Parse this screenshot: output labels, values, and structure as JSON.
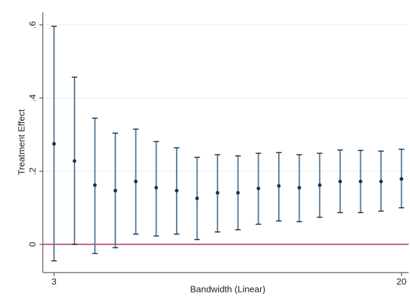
{
  "chart_data": {
    "type": "errorbar",
    "x_label": "Bandwidth (Linear)",
    "y_label": "Treatment Effect",
    "x": [
      3,
      4,
      5,
      6,
      7,
      8,
      9,
      10,
      11,
      12,
      13,
      14,
      15,
      16,
      17,
      18,
      19,
      20
    ],
    "values": [
      0.275,
      0.228,
      0.162,
      0.147,
      0.172,
      0.155,
      0.147,
      0.126,
      0.141,
      0.141,
      0.153,
      0.16,
      0.155,
      0.162,
      0.172,
      0.172,
      0.172,
      0.179
    ],
    "lower": [
      -0.045,
      0.0,
      -0.025,
      -0.009,
      0.028,
      0.023,
      0.028,
      0.013,
      0.034,
      0.04,
      0.055,
      0.064,
      0.062,
      0.074,
      0.087,
      0.087,
      0.091,
      0.1
    ],
    "upper": [
      0.596,
      0.457,
      0.345,
      0.304,
      0.315,
      0.281,
      0.264,
      0.238,
      0.245,
      0.242,
      0.249,
      0.251,
      0.245,
      0.249,
      0.258,
      0.257,
      0.255,
      0.26
    ],
    "color": "#1c2f4c",
    "bar_color": "#5b7f97",
    "reference_line": {
      "value": 0,
      "color": "#c0577f"
    },
    "xlim": [
      2.45,
      20.35
    ],
    "xticks": [
      3,
      20
    ],
    "ylim": [
      -0.077,
      0.634
    ],
    "yticks": [
      0,
      {
        "value": 0.2,
        "label": ".2"
      },
      {
        "value": 0.4,
        "label": ".4"
      },
      {
        "value": 0.6,
        "label": ".6"
      }
    ],
    "grid": true
  }
}
